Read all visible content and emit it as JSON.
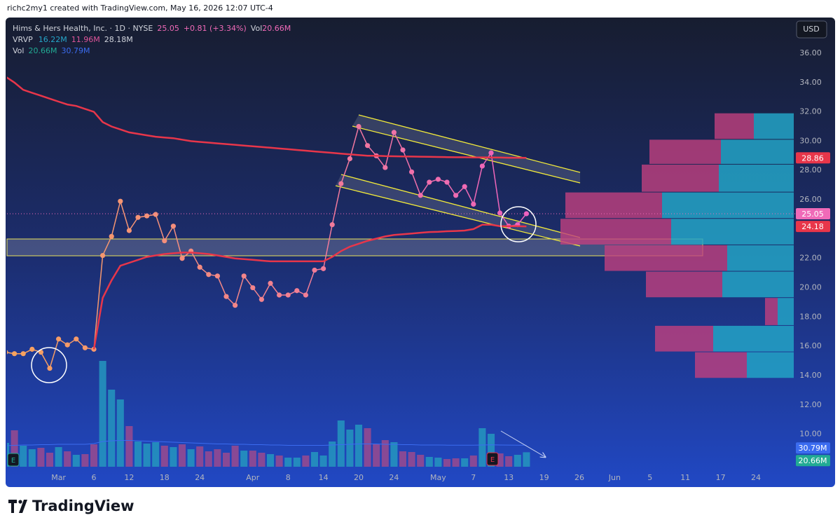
{
  "header": {
    "credit": "richc2my1 created with TradingView.com, May 16, 2026 12:07 UTC-4"
  },
  "legend": {
    "symbol": "Hims & Hers Health, Inc. · 1D · NYSE",
    "close": "25.05",
    "change": "+0.81 (+3.34%)",
    "vol_label": "Vol",
    "vol": "20.66M",
    "vrvp": "VRVP",
    "vrvp_up": "16.22M",
    "vrvp_down": "11.96M",
    "vrvp_total": "28.18M",
    "vol2_label": "Vol",
    "vol2": "20.66M",
    "vol2_ma": "30.79M"
  },
  "currency": "USD",
  "footer": {
    "brand": "TradingView"
  },
  "chart_data": {
    "type": "line",
    "categories": [
      null,
      null,
      null,
      null,
      null,
      null,
      "Mar",
      null,
      null,
      null,
      "6",
      null,
      null,
      null,
      "12",
      null,
      null,
      null,
      "18",
      null,
      null,
      null,
      "24",
      null,
      null,
      null,
      null,
      null,
      "Apr",
      null,
      null,
      null,
      "8",
      null,
      null,
      null,
      "14",
      null,
      null,
      null,
      "20",
      null,
      null,
      null,
      "24",
      null,
      null,
      null,
      null,
      "May",
      null,
      null,
      null,
      "7",
      null,
      null,
      null,
      "13",
      null,
      null,
      null,
      "19",
      null,
      null,
      null,
      "26",
      null,
      null,
      null,
      "Jun",
      null,
      null,
      null,
      "5",
      null,
      null,
      null,
      "11",
      null,
      null,
      null,
      "17",
      null,
      null,
      null,
      "24",
      null,
      null,
      null,
      null
    ],
    "ylim": [
      7.69,
      38.34
    ],
    "yticks": [
      {
        "value": 10,
        "label": "10.00"
      },
      {
        "value": 12,
        "label": "12.00"
      },
      {
        "value": 14,
        "label": "14.00"
      },
      {
        "value": 16,
        "label": "16.00"
      },
      {
        "value": 18,
        "label": "18.00"
      },
      {
        "value": 20,
        "label": "20.00"
      },
      {
        "value": 22,
        "label": "22.00"
      },
      {
        "value": 24,
        "label": "24.00"
      },
      {
        "value": 26,
        "label": "26.00"
      },
      {
        "value": 28,
        "label": "28.00"
      },
      {
        "value": 30,
        "label": "30.00"
      },
      {
        "value": 32,
        "label": "32.00"
      },
      {
        "value": 34,
        "label": "34.00"
      },
      {
        "value": 36,
        "label": "36.00"
      }
    ],
    "grid": false,
    "series": [
      {
        "color": "#f06ab8",
        "gradient": [
          "#f7a35c",
          "#ee62c0"
        ],
        "markers": true,
        "values": [
          15.6,
          15.5,
          15.5,
          15.8,
          15.6,
          14.5,
          16.5,
          16.1,
          16.5,
          15.9,
          15.8,
          22.2,
          23.5,
          25.9,
          23.9,
          24.8,
          24.9,
          25.0,
          23.2,
          24.2,
          22.0,
          22.5,
          21.4,
          20.9,
          20.8,
          19.4,
          18.8,
          20.8,
          20.0,
          19.2,
          20.3,
          19.5,
          19.5,
          19.8,
          19.5,
          21.2,
          21.3,
          24.3,
          27.1,
          28.8,
          31.0,
          29.7,
          29.0,
          28.2,
          30.6,
          29.4,
          27.9,
          26.3,
          27.2,
          27.4,
          27.2,
          26.3,
          26.9,
          25.7,
          28.3,
          29.2,
          25.1,
          24.2,
          24.3,
          25.05,
          null,
          null,
          null,
          null,
          null,
          null,
          null,
          null,
          null,
          null,
          null,
          null,
          null,
          null,
          null,
          null,
          null,
          null,
          null,
          null,
          null,
          null,
          null,
          null,
          null,
          null,
          null,
          null,
          null,
          null
        ]
      },
      {
        "color": "#e8364a",
        "markers": false,
        "values": [
          34.4,
          34.0,
          33.5,
          33.3,
          33.1,
          32.9,
          32.7,
          32.5,
          32.4,
          32.2,
          32.0,
          31.3,
          31.0,
          30.8,
          30.6,
          30.5,
          30.4,
          30.3,
          30.25,
          30.2,
          30.1,
          30.0,
          29.95,
          29.9,
          29.85,
          29.8,
          29.75,
          29.7,
          29.65,
          29.6,
          29.55,
          29.5,
          29.45,
          29.4,
          29.35,
          29.3,
          29.25,
          29.2,
          29.15,
          29.1,
          29.05,
          29.0,
          29.0,
          28.98,
          28.97,
          28.96,
          28.95,
          28.94,
          28.93,
          28.92,
          28.91,
          28.9,
          28.9,
          28.89,
          28.89,
          28.88,
          28.88,
          28.87,
          28.87,
          28.86,
          null,
          null,
          null,
          null,
          null,
          null,
          null,
          null,
          null,
          null,
          null,
          null,
          null,
          null,
          null,
          null,
          null,
          null,
          null,
          null,
          null,
          null,
          null,
          null,
          null,
          null,
          null,
          null,
          null,
          null
        ]
      },
      {
        "color": "#e8364a",
        "markers": false,
        "values": [
          null,
          null,
          null,
          null,
          null,
          null,
          null,
          null,
          null,
          null,
          15.8,
          19.3,
          20.5,
          21.5,
          21.7,
          21.9,
          22.1,
          22.2,
          22.3,
          22.35,
          22.4,
          22.4,
          22.35,
          22.3,
          22.2,
          22.1,
          22.0,
          21.95,
          21.9,
          21.85,
          21.8,
          21.8,
          21.8,
          21.8,
          21.8,
          21.8,
          21.8,
          22.1,
          22.5,
          22.8,
          23.0,
          23.2,
          23.35,
          23.5,
          23.6,
          23.65,
          23.7,
          23.75,
          23.8,
          23.82,
          23.85,
          23.87,
          23.9,
          24.0,
          24.3,
          24.3,
          24.2,
          24.2,
          24.2,
          24.18,
          null,
          null,
          null,
          null,
          null,
          null,
          null,
          null,
          null,
          null,
          null,
          null,
          null,
          null,
          null,
          null,
          null,
          null,
          null,
          null,
          null,
          null,
          null,
          null,
          null,
          null,
          null,
          null,
          null,
          null
        ]
      }
    ],
    "volume": {
      "ylim": [
        0,
        160
      ],
      "up_color": "#2596be",
      "down_color": "#9b4a8e",
      "ma_color": "#3b6cf0",
      "values": [
        34,
        52,
        30,
        25,
        27,
        20,
        28,
        22,
        17,
        18,
        32,
        151,
        110,
        96,
        58,
        36,
        33,
        35,
        30,
        28,
        32,
        25,
        29,
        22,
        25,
        20,
        30,
        23,
        23,
        20,
        18,
        16,
        13,
        13,
        16,
        21,
        16,
        36,
        66,
        53,
        60,
        55,
        32,
        38,
        35,
        22,
        21,
        17,
        14,
        13,
        11,
        12,
        12,
        16,
        55,
        47,
        19,
        15,
        17,
        20.66,
        null,
        null,
        null,
        null,
        null,
        null,
        null,
        null,
        null,
        null,
        null,
        null,
        null,
        null,
        null,
        null,
        null,
        null,
        null,
        null,
        null,
        null,
        null,
        null,
        null,
        null,
        null,
        null,
        null,
        null
      ],
      "ma": [
        30,
        30.5,
        31,
        31,
        31.5,
        31.5,
        32,
        32,
        32,
        32,
        33,
        36,
        37,
        37.5,
        37.5,
        37,
        36.5,
        36,
        35.5,
        35,
        34.5,
        34,
        33.5,
        33,
        32.5,
        32.5,
        32,
        32,
        31.5,
        31.5,
        31,
        31,
        30.5,
        30.5,
        30.5,
        30.5,
        30.5,
        31,
        31.5,
        32,
        32.5,
        32.5,
        32.5,
        32,
        32,
        31.5,
        31.5,
        31,
        31,
        31,
        30.8,
        30.8,
        30.7,
        30.7,
        31,
        31.2,
        31,
        30.9,
        30.8,
        30.79,
        null,
        null,
        null,
        null,
        null,
        null,
        null,
        null,
        null,
        null,
        null,
        null,
        null,
        null,
        null,
        null,
        null,
        null,
        null,
        null,
        null,
        null,
        null,
        null,
        null,
        null,
        null,
        null,
        null,
        null
      ]
    },
    "profile": {
      "xlim": [
        0,
        1000
      ],
      "down_color": "#c0407e",
      "up_color": "#23a3c6",
      "bins": [
        13.8,
        15.6,
        17.4,
        19.3,
        21.1,
        22.9,
        24.7,
        26.5,
        28.4,
        30.1,
        31.9
      ],
      "down": [
        74,
        83,
        18,
        109,
        175,
        158,
        138,
        110,
        102,
        56
      ],
      "up": [
        67,
        115,
        23,
        102,
        95,
        175,
        188,
        107,
        104,
        57
      ]
    }
  }
}
